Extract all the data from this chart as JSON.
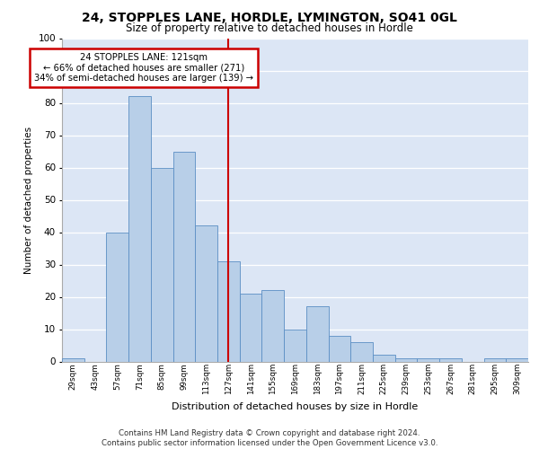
{
  "title1": "24, STOPPLES LANE, HORDLE, LYMINGTON, SO41 0GL",
  "title2": "Size of property relative to detached houses in Hordle",
  "xlabel": "Distribution of detached houses by size in Hordle",
  "ylabel": "Number of detached properties",
  "categories": [
    "29sqm",
    "43sqm",
    "57sqm",
    "71sqm",
    "85sqm",
    "99sqm",
    "113sqm",
    "127sqm",
    "141sqm",
    "155sqm",
    "169sqm",
    "183sqm",
    "197sqm",
    "211sqm",
    "225sqm",
    "239sqm",
    "253sqm",
    "267sqm",
    "281sqm",
    "295sqm",
    "309sqm"
  ],
  "values": [
    1,
    0,
    40,
    82,
    60,
    65,
    42,
    31,
    21,
    22,
    10,
    17,
    8,
    6,
    2,
    1,
    1,
    1,
    0,
    1,
    1
  ],
  "bar_color": "#b8cfe8",
  "bar_edge_color": "#5b8ec4",
  "bg_color": "#dce6f5",
  "annotation_line1": "24 STOPPLES LANE: 121sqm",
  "annotation_line2": "← 66% of detached houses are smaller (271)",
  "annotation_line3": "34% of semi-detached houses are larger (139) →",
  "annotation_box_color": "#ffffff",
  "annotation_box_edge": "#cc0000",
  "vline_color": "#cc0000",
  "vline_index": 7,
  "footer_text": "Contains HM Land Registry data © Crown copyright and database right 2024.\nContains public sector information licensed under the Open Government Licence v3.0.",
  "ylim": [
    0,
    100
  ],
  "yticks": [
    0,
    10,
    20,
    30,
    40,
    50,
    60,
    70,
    80,
    90,
    100
  ],
  "title1_fontsize": 10,
  "title2_fontsize": 8.5
}
